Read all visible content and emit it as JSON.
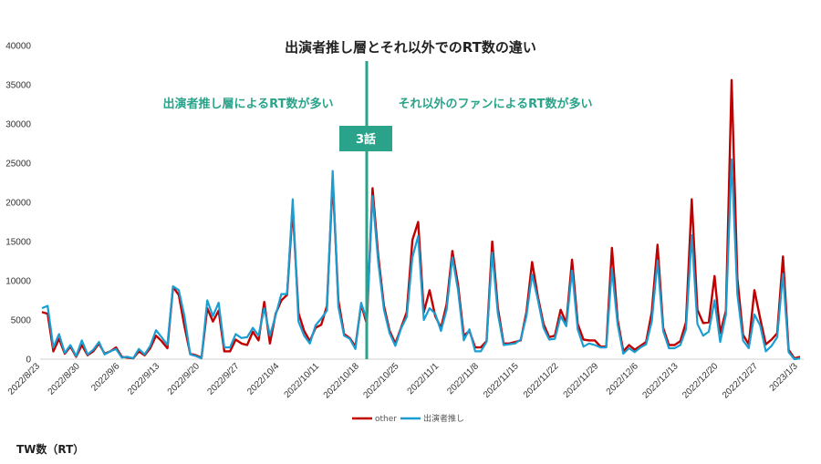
{
  "chart_data": {
    "type": "line",
    "title": "出演者推し層とそれ以外でのRT数の違い",
    "ylim": [
      0,
      40000
    ],
    "y_ticks": [
      0,
      5000,
      10000,
      15000,
      20000,
      25000,
      30000,
      35000,
      40000
    ],
    "x_tick_labels": [
      "2022/8/23",
      "2022/8/30",
      "2022/9/6",
      "2022/9/13",
      "2022/9/20",
      "2022/9/27",
      "2022/10/4",
      "2022/10/11",
      "2022/10/18",
      "2022/10/25",
      "2022/11/1",
      "2022/11/8",
      "2022/11/15",
      "2022/11/22",
      "2022/11/29",
      "2022/12/6",
      "2022/12/13",
      "2022/12/20",
      "2022/12/27",
      "2023/1/3"
    ],
    "x_start": "2022/8/23",
    "x_end": "2023/1/4",
    "legend_position": "bottom",
    "series": [
      {
        "name": "other",
        "color": "#c00000",
        "values": [
          6000,
          5800,
          1000,
          2600,
          700,
          1600,
          300,
          1800,
          500,
          1000,
          2000,
          700,
          1000,
          1500,
          300,
          200,
          100,
          1000,
          500,
          1400,
          3000,
          2300,
          1400,
          9200,
          8200,
          4200,
          700,
          500,
          200,
          6500,
          4800,
          6200,
          1000,
          1000,
          2500,
          2000,
          1800,
          3500,
          2400,
          7300,
          2000,
          5800,
          7500,
          8200,
          19300,
          5900,
          3600,
          2300,
          4000,
          4400,
          6800,
          23000,
          7500,
          3200,
          2700,
          1600,
          7000,
          4500,
          21800,
          13200,
          6800,
          3600,
          2000,
          4000,
          6000,
          15200,
          17500,
          6000,
          8800,
          5500,
          4000,
          7000,
          13800,
          9500,
          3000,
          3600,
          1500,
          1500,
          2300,
          15000,
          6500,
          2000,
          2000,
          2200,
          2400,
          6000,
          12400,
          8000,
          4500,
          2800,
          3000,
          6300,
          4600,
          12700,
          4500,
          2500,
          2400,
          2400,
          1600,
          1600,
          14200,
          5000,
          1000,
          1800,
          1200,
          1700,
          2200,
          6000,
          14600,
          4000,
          1800,
          1800,
          2300,
          4700,
          20400,
          6300,
          4600,
          4700,
          10600,
          3300,
          6200,
          35600,
          10300,
          3100,
          1900,
          8800,
          5200,
          1900,
          2500,
          3300,
          13100,
          1200,
          100,
          300
        ]
      },
      {
        "name": "出演者推し",
        "color": "#1a9ed2",
        "values": [
          6500,
          6800,
          1500,
          3200,
          800,
          1800,
          400,
          2400,
          600,
          1200,
          2200,
          600,
          1000,
          1300,
          200,
          300,
          100,
          1300,
          600,
          1700,
          3700,
          2800,
          1800,
          9300,
          8800,
          5500,
          600,
          400,
          100,
          7500,
          5500,
          7200,
          1500,
          1500,
          3200,
          2700,
          2800,
          4000,
          3000,
          6500,
          3000,
          5600,
          8300,
          8300,
          20400,
          4800,
          3000,
          2000,
          4300,
          5200,
          6200,
          24000,
          6700,
          3000,
          2600,
          1300,
          7200,
          5000,
          20800,
          12400,
          6300,
          3300,
          1700,
          3900,
          5400,
          13000,
          15700,
          5000,
          6500,
          5800,
          3600,
          6300,
          13000,
          8800,
          2400,
          3800,
          1000,
          1000,
          2200,
          13600,
          5800,
          1800,
          1900,
          2000,
          2500,
          5500,
          10800,
          7600,
          4000,
          2500,
          2600,
          5500,
          4200,
          11300,
          3800,
          1600,
          2000,
          1800,
          1500,
          1500,
          11500,
          4400,
          700,
          1400,
          900,
          1500,
          1900,
          4800,
          12600,
          3600,
          1400,
          1400,
          1800,
          3800,
          15800,
          4500,
          3000,
          3500,
          7500,
          2200,
          5700,
          25500,
          8300,
          2400,
          1400,
          5700,
          4300,
          1000,
          1700,
          2800,
          10900,
          900,
          0,
          100
        ]
      }
    ],
    "annotations": {
      "left_region": "出演者推し層によるRT数が多い",
      "right_region": "それ以外のファンによるRT数が多い",
      "marker_label": "3話",
      "marker_color": "#2aa38a"
    }
  },
  "footer": "TW数（RT）"
}
